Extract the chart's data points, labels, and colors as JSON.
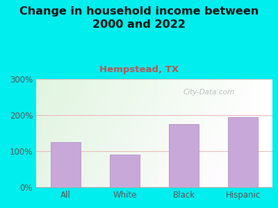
{
  "title": "Change in household income between\n2000 and 2022",
  "subtitle": "Hempstead, TX",
  "categories": [
    "All",
    "White",
    "Black",
    "Hispanic"
  ],
  "values": [
    125,
    90,
    175,
    195
  ],
  "bar_color": "#C8A8D8",
  "bar_edge_color": "#B898C8",
  "ylim": [
    0,
    300
  ],
  "yticks": [
    0,
    100,
    200,
    300
  ],
  "ytick_labels": [
    "0%",
    "100%",
    "200%",
    "300%"
  ],
  "background_color": "#00EEEE",
  "title_color": "#111111",
  "title_fontsize": 11.5,
  "subtitle_fontsize": 9.5,
  "subtitle_color": "#BB5555",
  "watermark": "City-Data.com",
  "grid_color": "#E8B8B8",
  "grid_alpha": 0.9,
  "tick_label_color": "#555555",
  "tick_fontsize": 8.5
}
